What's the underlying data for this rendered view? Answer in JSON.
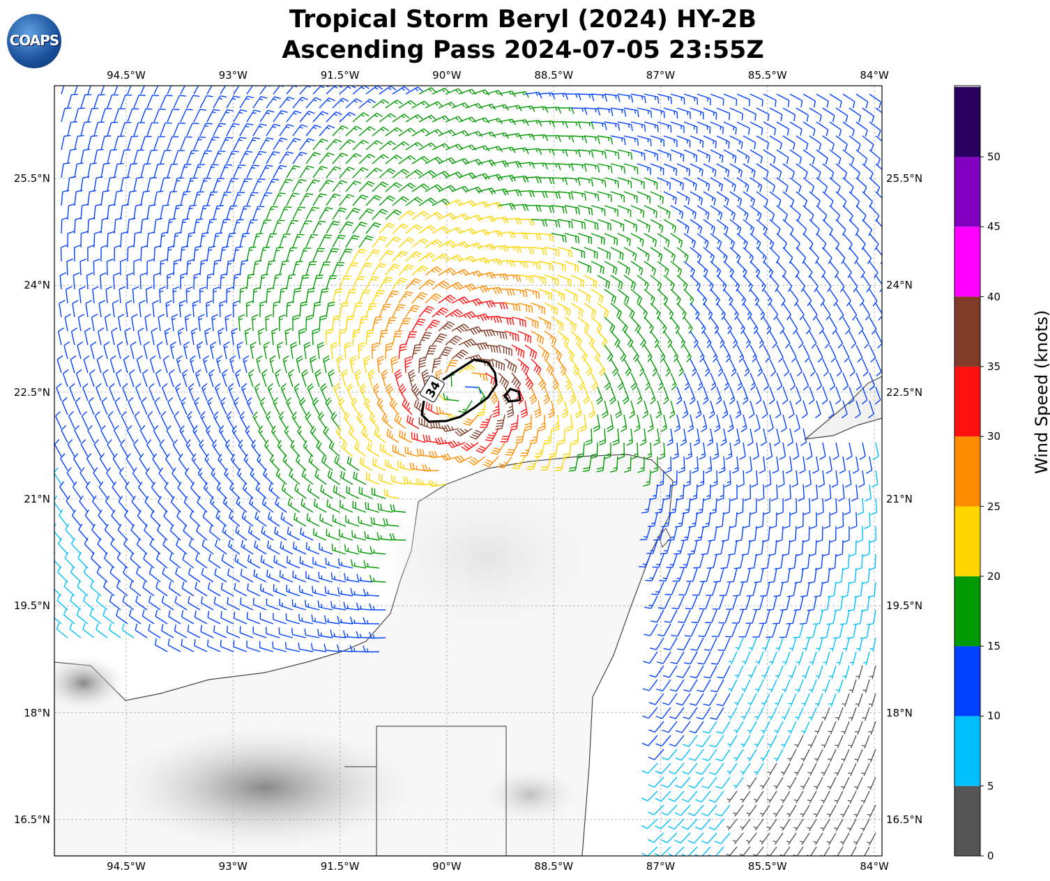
{
  "title": {
    "line1": "Tropical Storm Beryl (2024) HY-2B",
    "line2": "Ascending Pass 2024-07-05 23:55Z"
  },
  "logo": {
    "text": "COAPS"
  },
  "map": {
    "lon_ticks": [
      "94.5°W",
      "93°W",
      "91.5°W",
      "90°W",
      "88.5°W",
      "87°W",
      "85.5°W",
      "84°W"
    ],
    "lat_ticks": [
      "25.5°N",
      "24°N",
      "22.5°N",
      "21°N",
      "19.5°N",
      "18°N",
      "16.5°N"
    ],
    "lon_range": [
      -95.5,
      -83.9
    ],
    "lat_range": [
      16.0,
      26.8
    ],
    "contour_label": "34",
    "gridlines": true
  },
  "colorbar": {
    "label": "Wind Speed (knots)",
    "ticks": [
      "0",
      "5",
      "10",
      "15",
      "20",
      "25",
      "30",
      "35",
      "40",
      "45",
      "50"
    ],
    "range": [
      0,
      55
    ],
    "colors": [
      "#555555",
      "#00bfff",
      "#0040ff",
      "#009900",
      "#ffd500",
      "#ff8c00",
      "#ff1010",
      "#803c28",
      "#ff00ff",
      "#8000c0",
      "#2a005e"
    ]
  }
}
